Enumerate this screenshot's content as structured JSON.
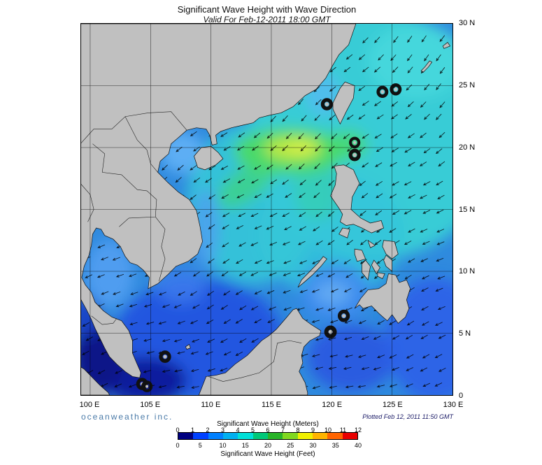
{
  "header": {
    "title": "Significant Wave Height with Wave Direction",
    "subtitle": "Valid For Feb-12-2011 18:00 GMT"
  },
  "footer": {
    "brand": "oceanweather inc.",
    "plotted": "Plotted Feb 12, 2011 11:50 GMT"
  },
  "map": {
    "x_ticks": [
      {
        "label": "100 E",
        "lon": 100
      },
      {
        "label": "105 E",
        "lon": 105
      },
      {
        "label": "110 E",
        "lon": 110
      },
      {
        "label": "115 E",
        "lon": 115
      },
      {
        "label": "120 E",
        "lon": 120
      },
      {
        "label": "125 E",
        "lon": 125
      },
      {
        "label": "130 E",
        "lon": 130
      }
    ],
    "y_ticks": [
      {
        "label": "30 N",
        "lat": 30
      },
      {
        "label": "25 N",
        "lat": 25
      },
      {
        "label": "20 N",
        "lat": 20
      },
      {
        "label": "15 N",
        "lat": 15
      },
      {
        "label": "10 N",
        "lat": 10
      },
      {
        "label": "5 N",
        "lat": 5
      },
      {
        "label": "0",
        "lat": 0
      }
    ],
    "grid_lons": [
      100,
      105,
      110,
      115,
      120,
      125
    ],
    "grid_lats": [
      5,
      10,
      15,
      20,
      25
    ]
  },
  "legend": {
    "meters_title": "Significant Wave Height (Meters)",
    "feet_title": "Significant Wave Height (Feet)",
    "meters_ticks": [
      0,
      1,
      2,
      3,
      4,
      5,
      6,
      7,
      8,
      9,
      10,
      11,
      12
    ],
    "feet_ticks": [
      0,
      5,
      10,
      15,
      20,
      25,
      30,
      35,
      40
    ],
    "colors": [
      "#000080",
      "#0040ff",
      "#0080ff",
      "#00b0f0",
      "#00e0d8",
      "#00c878",
      "#28b428",
      "#80d820",
      "#f0f000",
      "#ffb400",
      "#ff6400",
      "#e80000"
    ]
  },
  "chart_data": {
    "type": "heatmap",
    "title": "Significant Wave Height with Wave Direction",
    "valid_time": "Feb-12-2011 18:00 GMT",
    "plotted_time": "Feb 12, 2011 11:50 GMT",
    "region": {
      "lon_range_deg_E": [
        100,
        130
      ],
      "lat_range_deg_N": [
        0,
        30
      ]
    },
    "units": [
      "Meters",
      "Feet"
    ],
    "scale_meters_range": [
      0,
      12
    ],
    "scale_feet_range": [
      0,
      40
    ],
    "wave_direction": "arrows point predominantly toward the southwest; more westward at low latitudes",
    "field_summary": [
      {
        "area": "Luzon Strait / northern South China Sea (113E-121E, 18N-21N)",
        "height_m": "5-7 (green to yellow-green maximum)"
      },
      {
        "area": "Philippine Sea and East China Sea (east of Taiwan/Luzon)",
        "height_m": "3-4 (cyan)"
      },
      {
        "area": "central South China Sea",
        "height_m": "3-5 (cyan-green)"
      },
      {
        "area": "Gulf of Tonkin and Taiwan Strait",
        "height_m": "2-3 (light blue)"
      },
      {
        "area": "Gulf of Thailand",
        "height_m": "1.5-2.5 (light blue)"
      },
      {
        "area": "southern South China Sea near Borneo",
        "height_m": "1-2 (blue)"
      },
      {
        "area": "Malacca Strait / Karimata / Singapore Strait",
        "height_m": "0-1 (navy minimum)"
      },
      {
        "area": "Sulu Sea and Celebes Sea",
        "height_m": "1-3 (blue, lighter center)"
      },
      {
        "area": "Pacific east of Mindanao",
        "height_m": "1.5-2.5 (blue)"
      }
    ]
  }
}
